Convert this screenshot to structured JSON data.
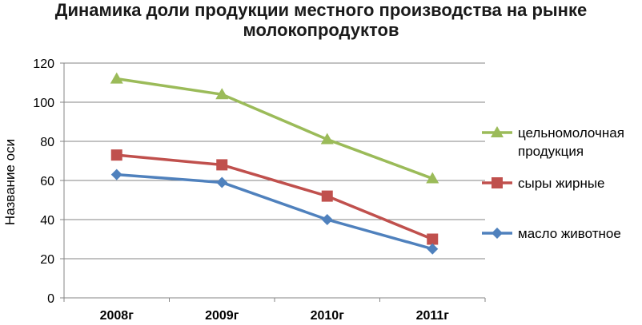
{
  "chart_data": {
    "type": "line",
    "title_lines": [
      "Динамика доли продукции местного производства на рынке",
      "молокопродуктов"
    ],
    "ylabel": "Название оси",
    "xlabel": "",
    "ylim": [
      0,
      120
    ],
    "y_ticks": [
      0,
      20,
      40,
      60,
      80,
      100,
      120
    ],
    "grid": true,
    "legend_position": "right",
    "categories": [
      "2008г",
      "2009г",
      "2010г",
      "2011г"
    ],
    "series": [
      {
        "name_lines": [
          "цельномолочная",
          "продукция"
        ],
        "values": [
          112,
          104,
          81,
          61
        ],
        "color": "#9bbb59",
        "marker": "triangle"
      },
      {
        "name_lines": [
          "сыры жирные"
        ],
        "values": [
          73,
          68,
          52,
          30
        ],
        "color": "#c0504d",
        "marker": "square"
      },
      {
        "name_lines": [
          "масло животное"
        ],
        "values": [
          63,
          59,
          40,
          25
        ],
        "color": "#4f81bd",
        "marker": "diamond"
      }
    ]
  }
}
